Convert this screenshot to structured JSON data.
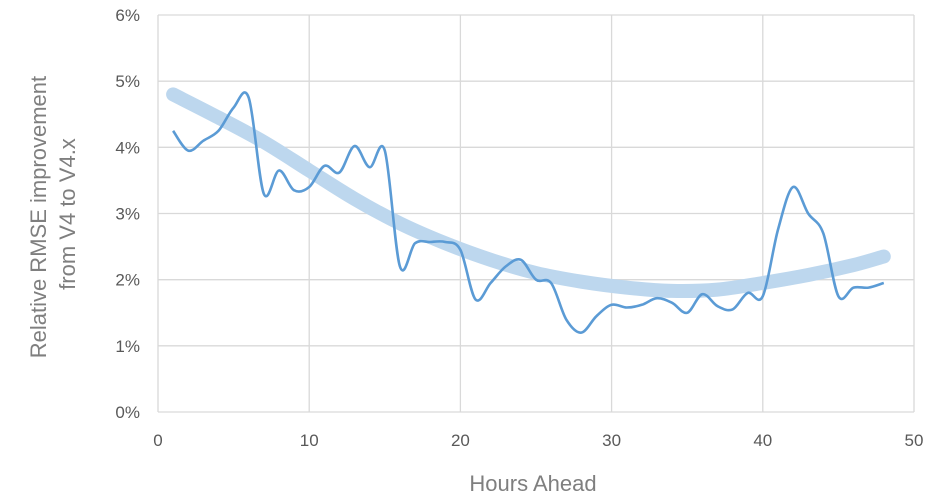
{
  "chart_data": {
    "type": "line",
    "title": "",
    "xlabel": "Hours Ahead",
    "ylabel_lines": [
      "Relative RMSE improvement",
      "from V4 to V4.x"
    ],
    "xlim": [
      0,
      50
    ],
    "ylim": [
      0,
      6
    ],
    "x_ticks": [
      "0",
      "10",
      "20",
      "30",
      "40",
      "50"
    ],
    "y_ticks": [
      "0%",
      "1%",
      "2%",
      "3%",
      "4%",
      "5%",
      "6%"
    ],
    "grid": true,
    "legend": "none",
    "series": [
      {
        "kind": "observed",
        "color": "#5b9bd5",
        "points": [
          [
            1,
            4.25
          ],
          [
            2,
            3.95
          ],
          [
            3,
            4.1
          ],
          [
            4,
            4.25
          ],
          [
            5,
            4.6
          ],
          [
            6,
            4.75
          ],
          [
            7,
            3.3
          ],
          [
            8,
            3.65
          ],
          [
            9,
            3.35
          ],
          [
            10,
            3.4
          ],
          [
            11,
            3.72
          ],
          [
            12,
            3.62
          ],
          [
            13,
            4.02
          ],
          [
            14,
            3.7
          ],
          [
            15,
            3.95
          ],
          [
            16,
            2.2
          ],
          [
            17,
            2.55
          ],
          [
            18,
            2.57
          ],
          [
            19,
            2.57
          ],
          [
            20,
            2.45
          ],
          [
            21,
            1.7
          ],
          [
            22,
            1.95
          ],
          [
            23,
            2.2
          ],
          [
            24,
            2.3
          ],
          [
            25,
            2.0
          ],
          [
            26,
            1.95
          ],
          [
            27,
            1.4
          ],
          [
            28,
            1.2
          ],
          [
            29,
            1.45
          ],
          [
            30,
            1.62
          ],
          [
            31,
            1.58
          ],
          [
            32,
            1.62
          ],
          [
            33,
            1.72
          ],
          [
            34,
            1.65
          ],
          [
            35,
            1.5
          ],
          [
            36,
            1.78
          ],
          [
            37,
            1.6
          ],
          [
            38,
            1.55
          ],
          [
            39,
            1.8
          ],
          [
            40,
            1.75
          ],
          [
            41,
            2.75
          ],
          [
            42,
            3.4
          ],
          [
            43,
            3.0
          ],
          [
            44,
            2.7
          ],
          [
            45,
            1.75
          ],
          [
            46,
            1.88
          ],
          [
            47,
            1.88
          ],
          [
            48,
            1.95
          ]
        ]
      },
      {
        "kind": "trendline",
        "color": "#bdd7ee",
        "points": [
          [
            1,
            4.8
          ],
          [
            4,
            4.45
          ],
          [
            7,
            4.08
          ],
          [
            10,
            3.65
          ],
          [
            13,
            3.22
          ],
          [
            16,
            2.85
          ],
          [
            19,
            2.55
          ],
          [
            22,
            2.3
          ],
          [
            25,
            2.1
          ],
          [
            28,
            1.97
          ],
          [
            31,
            1.88
          ],
          [
            34,
            1.83
          ],
          [
            37,
            1.85
          ],
          [
            40,
            1.95
          ],
          [
            43,
            2.07
          ],
          [
            46,
            2.22
          ],
          [
            48,
            2.35
          ]
        ]
      }
    ]
  }
}
